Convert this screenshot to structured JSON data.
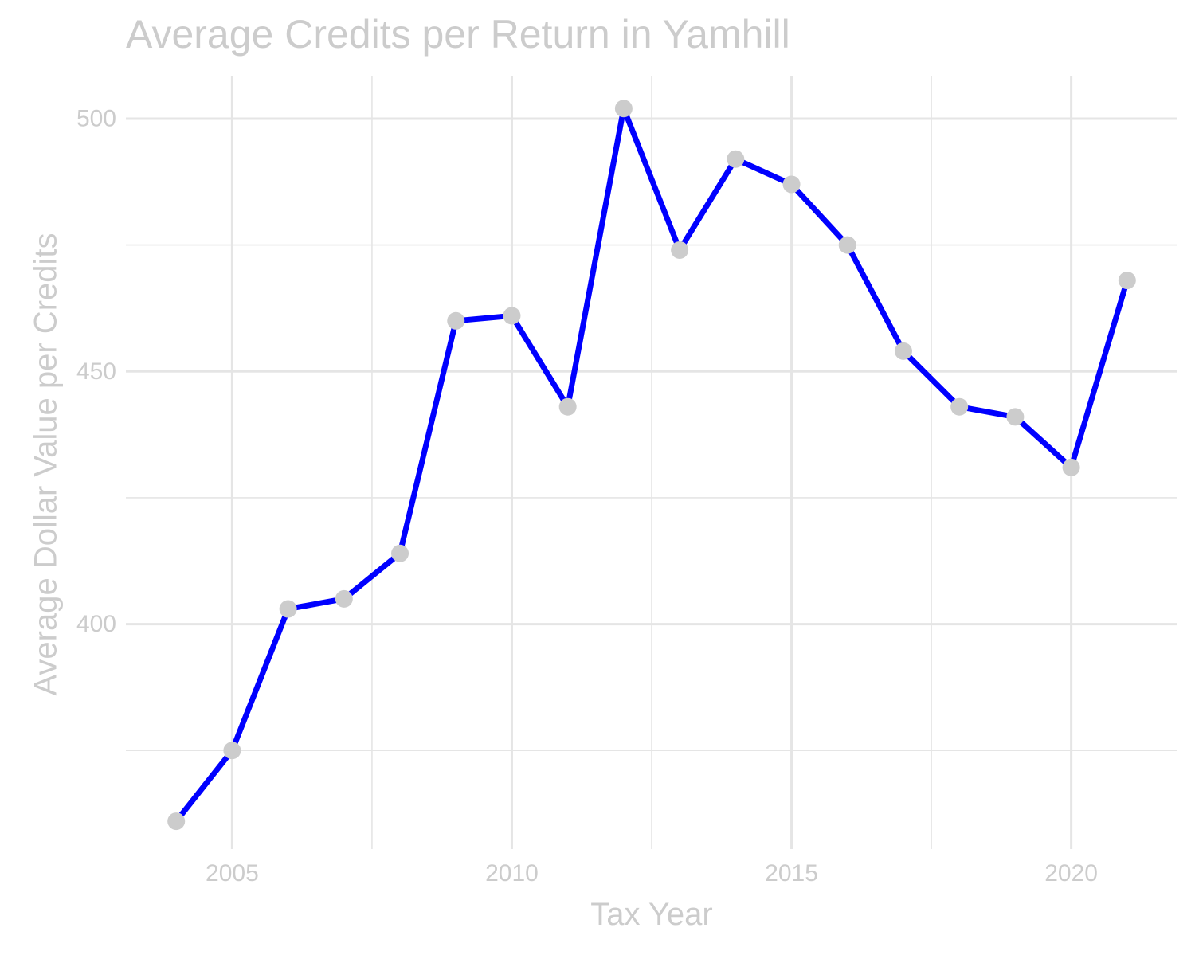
{
  "chart_data": {
    "type": "line",
    "title": "Average Credits per Return in Yamhill",
    "xlabel": "Tax Year",
    "ylabel": "Average Dollar Value per Credits",
    "x": [
      2004,
      2005,
      2006,
      2007,
      2008,
      2009,
      2010,
      2011,
      2012,
      2013,
      2014,
      2015,
      2016,
      2017,
      2018,
      2019,
      2020,
      2021
    ],
    "series": [
      {
        "values": [
          361,
          375,
          403,
          405,
          414,
          460,
          461,
          443,
          502,
          474,
          492,
          487,
          475,
          454,
          443,
          441,
          431,
          468
        ],
        "color": "#0000ff",
        "marker_color": "#cccccc"
      }
    ],
    "xlim": [
      2003.1,
      2021.9
    ],
    "ylim": [
      355.5,
      508.5
    ],
    "x_ticks": [
      2005,
      2010,
      2015,
      2020
    ],
    "x_tick_labels": [
      "2005",
      "2010",
      "2015",
      "2020"
    ],
    "y_ticks": [
      400,
      450,
      500
    ],
    "y_tick_labels": [
      "400",
      "450",
      "500"
    ],
    "x_minor_ticks": [
      2007.5,
      2012.5,
      2017.5
    ],
    "y_minor_ticks": [
      375,
      425,
      475
    ],
    "grid": true,
    "legend": "none",
    "colors": {
      "text": "#cccccc",
      "grid": "#e5e5e5",
      "line": "#0000ff",
      "marker": "#cccccc"
    }
  }
}
